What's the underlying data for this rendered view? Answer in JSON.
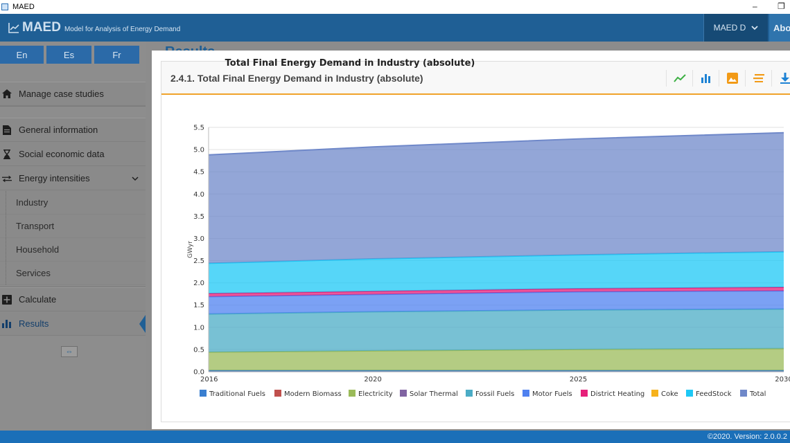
{
  "window": {
    "title": "MAED",
    "minimize_glyph": "–",
    "restore_glyph": "❐"
  },
  "header": {
    "brand": "MAED",
    "subtitle": "Model for Analysis of Energy Demand",
    "user_menu": "MAED D",
    "about": "Abo"
  },
  "languages": [
    "En",
    "Es",
    "Fr"
  ],
  "nav": {
    "manage": "Manage case studies",
    "general": "General information",
    "social": "Social economic data",
    "energy_intensities": "Energy intensities",
    "sub": [
      "Industry",
      "Transport",
      "Household",
      "Services"
    ],
    "calculate": "Calculate",
    "results": "Results",
    "collapse_glyph": "⇔"
  },
  "background_title": "Results",
  "card": {
    "title": "2.4.1. Total Final Energy Demand in Industry (absolute)",
    "tools": [
      "line-chart-icon",
      "bar-chart-icon",
      "image-icon",
      "stack-icon",
      "download-icon"
    ]
  },
  "footer": {
    "version": "©2020. Version: 2.0.0.2"
  },
  "colors": {
    "accent": "#f0a22a",
    "header": "#1f5f95",
    "status": "#1b6fb8"
  },
  "chart_data": {
    "type": "area",
    "title": "Total Final Energy Demand in Industry (absolute)",
    "ylabel": "GWyr",
    "xlabel": "",
    "x": [
      2016,
      2020,
      2025,
      2030
    ],
    "x_ticks": [
      "2016",
      "2020",
      "2025",
      "2030"
    ],
    "ylim": [
      0,
      5.5
    ],
    "y_ticks": [
      "0.0",
      "0.5",
      "1.0",
      "1.5",
      "2.0",
      "2.5",
      "3.0",
      "3.5",
      "4.0",
      "4.5",
      "5.0",
      "5.5"
    ],
    "stacked": true,
    "grid": true,
    "legend_position": "bottom",
    "series": [
      {
        "name": "Traditional Fuels",
        "color": "#3a7fd0",
        "values": [
          0.03,
          0.03,
          0.03,
          0.03
        ]
      },
      {
        "name": "Modern Biomass",
        "color": "#c0504d",
        "values": [
          0.0,
          0.0,
          0.0,
          0.0
        ]
      },
      {
        "name": "Electricity",
        "color": "#9bbb59",
        "values": [
          0.41,
          0.44,
          0.47,
          0.49
        ]
      },
      {
        "name": "Solar Thermal",
        "color": "#8064a2",
        "values": [
          0.0,
          0.0,
          0.0,
          0.0
        ]
      },
      {
        "name": "Fossil Fuels",
        "color": "#4bacc6",
        "values": [
          0.86,
          0.88,
          0.89,
          0.89
        ]
      },
      {
        "name": "Motor Fuels",
        "color": "#4f81f0",
        "values": [
          0.39,
          0.39,
          0.41,
          0.41
        ]
      },
      {
        "name": "District Heating",
        "color": "#e6207a",
        "values": [
          0.07,
          0.07,
          0.07,
          0.08
        ]
      },
      {
        "name": "Coke",
        "color": "#f6b21c",
        "values": [
          0.0,
          0.0,
          0.0,
          0.0
        ]
      },
      {
        "name": "FeedStock",
        "color": "#1ec8f5",
        "values": [
          0.68,
          0.73,
          0.76,
          0.8
        ]
      },
      {
        "name": "Total",
        "color": "#6f88c9",
        "values": [
          2.44,
          2.52,
          2.61,
          2.68
        ]
      }
    ]
  }
}
